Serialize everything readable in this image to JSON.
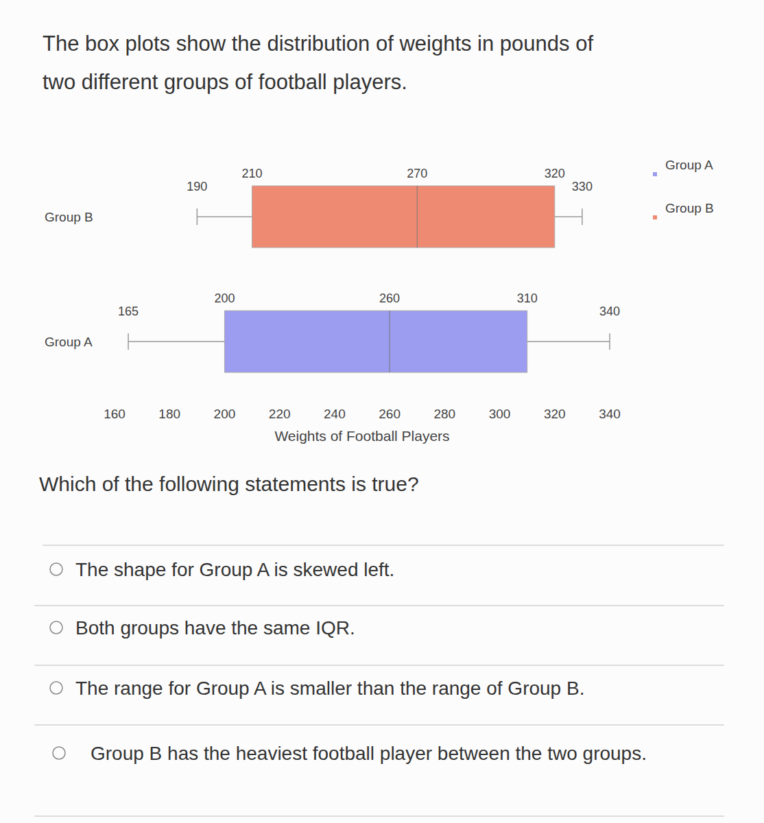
{
  "header": {
    "lines": [
      "The box plots show the distribution of weights in pounds of",
      "two different groups of football players."
    ]
  },
  "chart_data": {
    "type": "box",
    "categories": [
      "Group B",
      "Group A"
    ],
    "series": [
      {
        "name": "Group A",
        "color": "#9c9cf0",
        "min": 165,
        "q1": 200,
        "median": 260,
        "q3": 310,
        "max": 340
      },
      {
        "name": "Group B",
        "color": "#ef8a72",
        "min": 190,
        "q1": 210,
        "median": 270,
        "q3": 320,
        "max": 330
      }
    ],
    "x_label": "Weights of Football Players",
    "xlim": [
      160,
      340
    ],
    "xticks": [
      160,
      180,
      200,
      220,
      240,
      260,
      280,
      300,
      320,
      340
    ],
    "data_labels": true,
    "legend": "top-right",
    "grid": false
  },
  "question": {
    "prompt": "Which of the following statements is true?",
    "options": [
      "The shape for Group A is skewed left.",
      "Both groups have the same IQR.",
      "The range for Group A is smaller than the range of Group B.",
      "Group B has the heaviest football player between the two groups."
    ]
  }
}
